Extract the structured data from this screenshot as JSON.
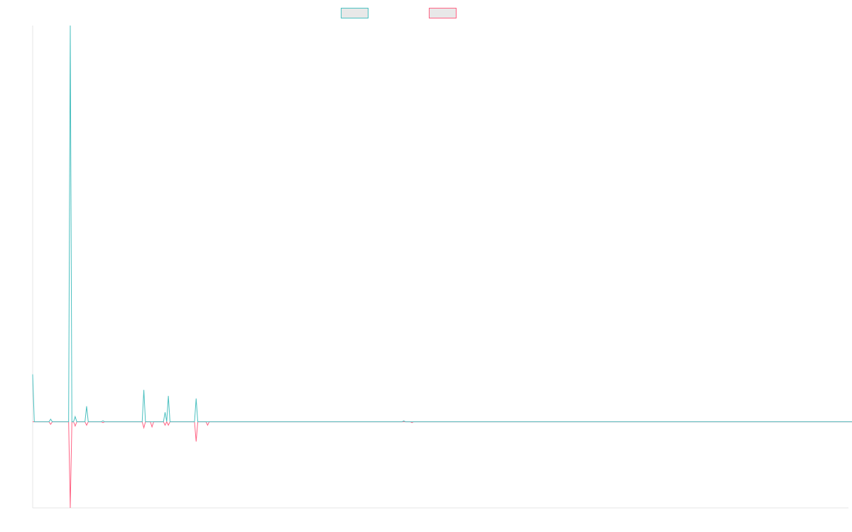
{
  "chart_data": {
    "type": "line",
    "title": "",
    "xlabel": "",
    "ylabel": "",
    "x_count": 500,
    "ylim": [
      -1.0,
      4.6
    ],
    "grid": false,
    "legend_placement": "top-center",
    "series": [
      {
        "color": "#4bc0c0",
        "values": [
          0.55,
          0,
          0,
          0,
          0,
          0,
          0,
          0,
          0,
          0,
          0,
          0.03,
          0,
          0,
          0,
          0,
          0,
          0,
          0,
          0,
          0,
          0,
          0,
          4.6,
          0,
          0,
          0.06,
          0,
          0,
          0,
          0,
          0,
          0,
          0.18,
          0,
          0,
          0,
          0,
          0,
          0,
          0,
          0,
          0,
          0.01,
          0,
          0,
          0,
          0,
          0,
          0,
          0,
          0,
          0,
          0,
          0,
          0,
          0,
          0,
          0,
          0,
          0,
          0,
          0,
          0,
          0,
          0,
          0,
          0,
          0.37,
          0,
          0,
          0,
          0,
          0,
          0,
          0,
          0,
          0,
          0,
          0,
          0,
          0.11,
          0,
          0.3,
          0,
          0,
          0,
          0,
          0,
          0,
          0,
          0,
          0,
          0,
          0,
          0,
          0,
          0,
          0,
          0,
          0.27,
          0,
          0,
          0,
          0,
          0,
          0,
          0,
          0,
          0,
          0,
          0,
          0,
          0,
          0,
          0,
          0,
          0,
          0,
          0,
          0,
          0,
          0,
          0,
          0,
          0,
          0,
          0,
          0,
          0,
          0,
          0,
          0,
          0,
          0,
          0,
          0,
          0,
          0,
          0,
          0,
          0,
          0,
          0,
          0,
          0,
          0,
          0,
          0,
          0,
          0,
          0,
          0,
          0,
          0,
          0,
          0,
          0,
          0,
          0,
          0,
          0,
          0,
          0,
          0,
          0,
          0,
          0,
          0,
          0,
          0,
          0,
          0,
          0,
          0,
          0,
          0,
          0,
          0,
          0,
          0,
          0,
          0,
          0,
          0,
          0,
          0,
          0,
          0,
          0,
          0,
          0,
          0,
          0,
          0,
          0,
          0,
          0,
          0,
          0,
          0,
          0,
          0,
          0,
          0,
          0,
          0,
          0,
          0,
          0,
          0,
          0,
          0,
          0,
          0,
          0,
          0,
          0,
          0,
          0,
          0,
          0,
          0,
          0,
          0,
          0,
          0,
          0.01,
          0,
          0,
          0,
          0,
          0,
          0,
          0,
          0,
          0,
          0,
          0,
          0,
          0,
          0,
          0,
          0,
          0,
          0,
          0,
          0,
          0,
          0,
          0,
          0,
          0,
          0,
          0,
          0,
          0,
          0,
          0,
          0,
          0,
          0,
          0,
          0,
          0,
          0,
          0,
          0,
          0,
          0,
          0,
          0,
          0,
          0,
          0,
          0,
          0,
          0,
          0,
          0,
          0,
          0,
          0,
          0,
          0,
          0,
          0,
          0,
          0,
          0,
          0,
          0,
          0,
          0,
          0,
          0,
          0,
          0,
          0,
          0,
          0,
          0,
          0,
          0,
          0,
          0,
          0,
          0,
          0,
          0,
          0,
          0,
          0,
          0,
          0,
          0,
          0,
          0,
          0,
          0,
          0,
          0,
          0,
          0,
          0,
          0,
          0,
          0,
          0,
          0,
          0,
          0,
          0,
          0,
          0,
          0,
          0,
          0,
          0,
          0,
          0,
          0,
          0,
          0,
          0,
          0,
          0,
          0,
          0,
          0,
          0,
          0,
          0,
          0,
          0,
          0,
          0,
          0,
          0,
          0,
          0,
          0,
          0,
          0,
          0,
          0,
          0,
          0,
          0,
          0,
          0,
          0,
          0,
          0,
          0,
          0,
          0,
          0,
          0,
          0,
          0,
          0,
          0,
          0,
          0,
          0,
          0,
          0,
          0,
          0,
          0,
          0,
          0,
          0,
          0,
          0,
          0,
          0,
          0,
          0,
          0,
          0,
          0,
          0,
          0,
          0,
          0,
          0,
          0,
          0,
          0,
          0,
          0,
          0,
          0,
          0,
          0,
          0,
          0,
          0,
          0,
          0,
          0,
          0,
          0,
          0,
          0,
          0,
          0,
          0,
          0,
          0,
          0,
          0,
          0,
          0,
          0,
          0,
          0,
          0,
          0,
          0,
          0,
          0,
          0,
          0,
          0,
          0,
          0,
          0,
          0,
          0,
          0,
          0,
          0,
          0,
          0,
          0,
          0,
          0,
          0,
          0,
          0,
          0,
          0,
          0,
          0,
          0,
          0,
          0,
          0,
          0,
          0,
          0,
          0,
          0,
          0,
          0,
          0,
          0,
          0,
          0,
          0,
          0,
          0,
          0,
          0,
          0,
          0,
          0,
          0,
          0,
          0,
          0,
          0,
          0,
          0,
          0,
          0,
          0,
          0,
          0,
          0,
          0,
          0,
          0,
          0,
          0,
          0
        ]
      },
      {
        "color": "#ff6384",
        "values": [
          0,
          0,
          0,
          0,
          0,
          0,
          0,
          0,
          0,
          0,
          0,
          -0.03,
          0,
          0,
          0,
          0,
          0,
          0,
          0,
          0,
          0,
          0,
          0,
          -1.0,
          0,
          0,
          -0.05,
          0,
          0,
          0,
          0,
          0,
          0,
          -0.04,
          0,
          0,
          0,
          0,
          0,
          0,
          0,
          0,
          0,
          -0.01,
          0,
          0,
          0,
          0,
          0,
          0,
          0,
          0,
          0,
          0,
          0,
          0,
          0,
          0,
          0,
          0,
          0,
          0,
          0,
          0,
          0,
          0,
          0,
          0,
          -0.07,
          0,
          0,
          0,
          0,
          -0.06,
          0,
          0,
          0,
          0,
          0,
          0,
          0,
          -0.04,
          0,
          -0.04,
          0,
          0,
          0,
          0,
          0,
          0,
          0,
          0,
          0,
          0,
          0,
          0,
          0,
          0,
          0,
          0,
          -0.23,
          0,
          0,
          0,
          0,
          0,
          0,
          -0.04,
          0,
          0,
          0,
          0,
          0,
          0,
          0,
          0,
          0,
          0,
          0,
          0,
          0,
          0,
          0,
          0,
          0,
          0,
          0,
          0,
          0,
          0,
          0,
          0,
          0,
          0,
          0,
          0,
          0,
          0,
          0,
          0,
          0,
          0,
          0,
          0,
          0,
          0,
          0,
          0,
          0,
          0,
          0,
          0,
          0,
          0,
          0,
          0,
          0,
          0,
          0,
          0,
          0,
          0,
          0,
          0,
          0,
          0,
          0,
          0,
          0,
          0,
          0,
          0,
          0,
          0,
          0,
          0,
          0,
          0,
          0,
          0,
          0,
          0,
          0,
          0,
          0,
          0,
          0,
          0,
          0,
          0,
          0,
          0,
          0,
          0,
          0,
          0,
          0,
          0,
          0,
          0,
          0,
          0,
          0,
          0,
          0,
          0,
          0,
          0,
          0,
          0,
          0,
          0,
          0,
          0,
          0,
          0,
          0,
          0,
          0,
          0,
          0,
          0,
          0,
          0,
          0,
          0,
          0,
          0,
          0,
          0,
          0,
          0,
          -0.01,
          0,
          0,
          0,
          0,
          0,
          0,
          0,
          0,
          0,
          0,
          0,
          0,
          0,
          0,
          0,
          0,
          0,
          0,
          0,
          0,
          0,
          0,
          0,
          0,
          0,
          0,
          0,
          0,
          0,
          0,
          0,
          0,
          0,
          0,
          0,
          0,
          0,
          0,
          0,
          0,
          0,
          0,
          0,
          0,
          0,
          0,
          0,
          0,
          0,
          0,
          0,
          0,
          0,
          0,
          0,
          0,
          0,
          0,
          0,
          0,
          0,
          0,
          0,
          0,
          0,
          0,
          0,
          0,
          0,
          0,
          0,
          0,
          0,
          0,
          0,
          0,
          0,
          0,
          0,
          0,
          0,
          0,
          0,
          0,
          0,
          0,
          0,
          0,
          0,
          0,
          0,
          0,
          0,
          0,
          0,
          0,
          0,
          0,
          0,
          0,
          0,
          0,
          0,
          0,
          0,
          0,
          0,
          0,
          0,
          0,
          0,
          0,
          0,
          0,
          0,
          0,
          0,
          0,
          0,
          0,
          0,
          0,
          0,
          0,
          0,
          0,
          0,
          0,
          0,
          0,
          0,
          0,
          0,
          0,
          0,
          0,
          0,
          0,
          0,
          0,
          0,
          0,
          0,
          0,
          0,
          0,
          0,
          0,
          0,
          0,
          0,
          0,
          0,
          0,
          0,
          0,
          0,
          0,
          0,
          0,
          0,
          0,
          0,
          0,
          0,
          0,
          0,
          0,
          0,
          0,
          0,
          0,
          0,
          0,
          0,
          0,
          0,
          0,
          0,
          0,
          0,
          0,
          0,
          0,
          0,
          0,
          0,
          0,
          0,
          0,
          0,
          0,
          0,
          0,
          0,
          0,
          0,
          0,
          0,
          0,
          0,
          0,
          0,
          0,
          0,
          0,
          0,
          0,
          0,
          0,
          0,
          0,
          0,
          0,
          0,
          0,
          0,
          0,
          0,
          0,
          0,
          0,
          0,
          0,
          0,
          0,
          0,
          0,
          0,
          0,
          0,
          0,
          0,
          0,
          0,
          0,
          0,
          0,
          0,
          0,
          0,
          0,
          0,
          0,
          0,
          0,
          0,
          0,
          0,
          0,
          0,
          0,
          0,
          0,
          0,
          0,
          0,
          0,
          0,
          0,
          0,
          0,
          0,
          0,
          0,
          0,
          0,
          0,
          0,
          0,
          0,
          0,
          0,
          0,
          0,
          0,
          0,
          0,
          0,
          0,
          0,
          0,
          0,
          0,
          0
        ]
      }
    ],
    "legend": [
      {
        "color": "#4bc0c0",
        "fill": "#e8e8e8"
      },
      {
        "color": "#ff6384",
        "fill": "#e8e8e8"
      }
    ],
    "axis_color": "#e4e4e4"
  }
}
